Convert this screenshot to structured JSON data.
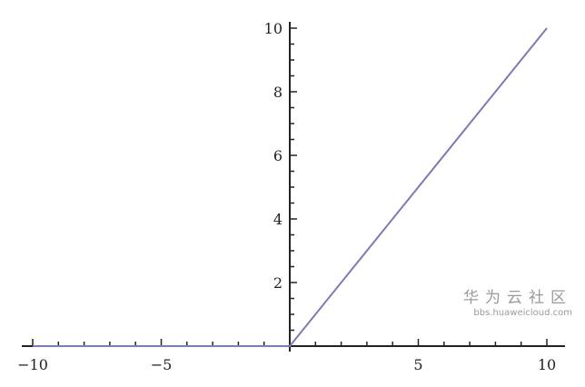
{
  "chart_data": {
    "type": "line",
    "title": "",
    "xlabel": "",
    "ylabel": "",
    "xlim": [
      -10,
      10
    ],
    "ylim": [
      0,
      10
    ],
    "x_ticks": [
      -10,
      -5,
      5,
      10
    ],
    "x_tick_labels": [
      "−10",
      "−5",
      "5",
      "10"
    ],
    "y_ticks": [
      2,
      4,
      6,
      8,
      10
    ],
    "y_tick_labels": [
      "2",
      "4",
      "6",
      "8",
      "10"
    ],
    "x_minor_step": 1,
    "y_minor_step": 0.5,
    "grid": false,
    "series": [
      {
        "x": [
          -10,
          0,
          10
        ],
        "y": [
          0,
          0,
          10
        ],
        "color": "#7b7bb5"
      }
    ]
  },
  "watermark": {
    "text": "华为云社区",
    "url": "bbs.huaweicloud.com"
  }
}
